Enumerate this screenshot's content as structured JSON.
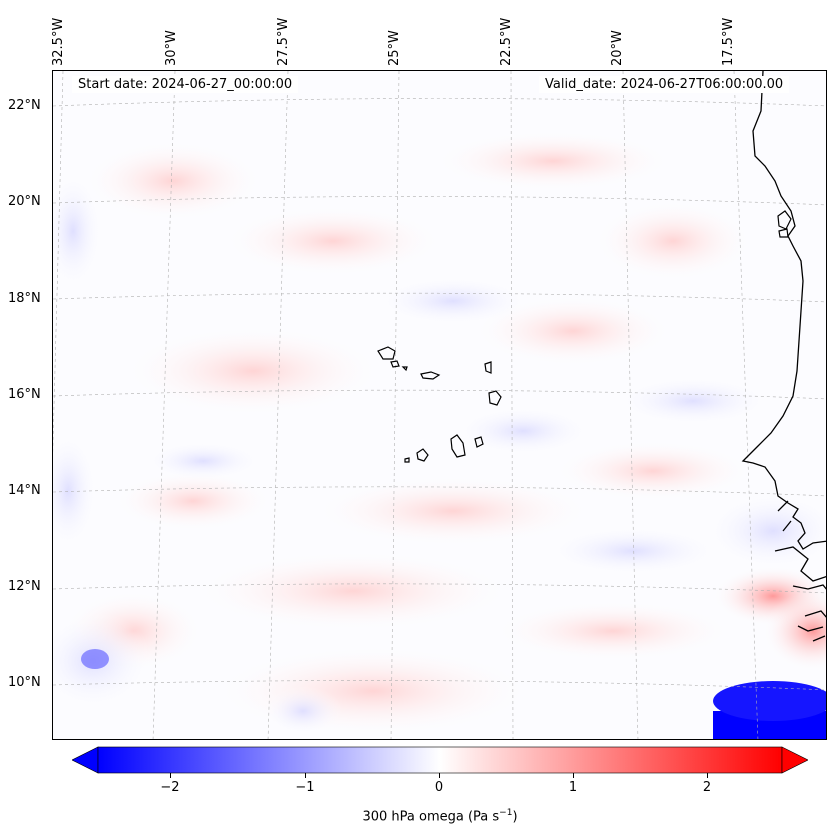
{
  "map": {
    "start_date": "Start date: 2024-06-27_00:00:00",
    "valid_date": "Valid_date: 2024-06-27T06:00:00.00",
    "lon_labels": [
      "32.5°W",
      "30°W",
      "27.5°W",
      "25°W",
      "22.5°W",
      "20°W",
      "17.5°W"
    ],
    "lat_labels": [
      "22°N",
      "20°N",
      "18°N",
      "16°N",
      "14°N",
      "12°N",
      "10°N"
    ],
    "field": "300 hPa omega",
    "colormap": "bwr",
    "coastline_color": "#000000",
    "gridlines": true
  },
  "colorbar": {
    "ticks": [
      "−2",
      "−1",
      "0",
      "1",
      "2"
    ],
    "label_text": "300 hPa omega (Pa s",
    "label_sup": "−1",
    "label_close": ")",
    "range": [
      -2.7,
      2.7
    ],
    "min_color": "#0000ff",
    "mid_color": "#ffffff",
    "max_color": "#ff0000"
  }
}
